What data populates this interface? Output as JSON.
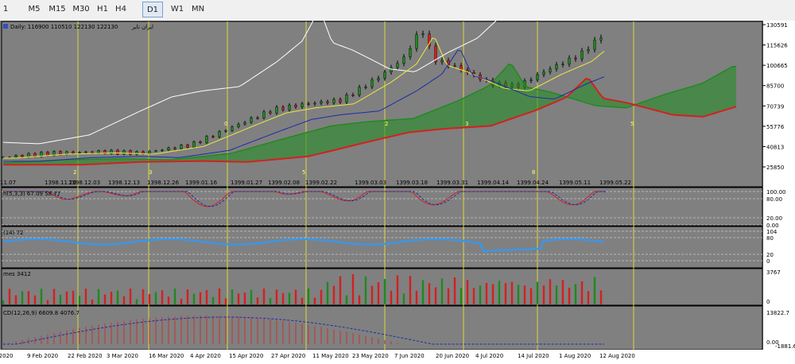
{
  "toolbar": {
    "timeframes": [
      {
        "label": "1",
        "active": false
      },
      {
        "label": "M5",
        "active": false
      },
      {
        "label": "M15",
        "active": false
      },
      {
        "label": "M30",
        "active": false
      },
      {
        "label": "H1",
        "active": false
      },
      {
        "label": "H4",
        "active": false
      },
      {
        "label": "D1",
        "active": true
      },
      {
        "label": "W1",
        "active": false
      },
      {
        "label": "MN",
        "active": false
      }
    ]
  },
  "chart_header": {
    "symbol_rtl": "ایران تایر",
    "text": "ایران تایر Daily:  116900  110510  122130  122130",
    "ltr_text": "Daily:  116900  110510  122130  122130",
    "rtl_text": "ایران تایر"
  },
  "price_axis": [
    "130591",
    "115626",
    "100665",
    "85700",
    "70739",
    "55776",
    "40813",
    "25850"
  ],
  "persian_dates": [
    "1398.11.07",
    "1398.11.20",
    "1398.12.03",
    "1398.12.13",
    "1398.12.26",
    "1399.01.16",
    "1399.01.27",
    "1399.02.08",
    "1399.02.22",
    "1399.03.03",
    "1399.03.18",
    "1399.03.31",
    "1399.04.14",
    "1399.04.24",
    "1399.05.11",
    "1399.05.22"
  ],
  "wave_labels": [
    "2",
    "3",
    "0",
    "5",
    "2",
    "3",
    "8",
    "5"
  ],
  "stoch": {
    "label": "h(5,3,3) 67.09 58.77",
    "axis": [
      "100.00",
      "80.00",
      "20.00",
      "0.00"
    ]
  },
  "rsi": {
    "label": "(14) 72",
    "axis": [
      "104",
      "80",
      "20",
      "0"
    ]
  },
  "volume": {
    "label": "mes 3412",
    "axis": [
      "3767",
      "0"
    ]
  },
  "macd": {
    "label": "CD(12,26,9) 6609.8 4076.7",
    "axis": [
      "13822.7",
      "0.00",
      "-1881.6"
    ]
  },
  "gregorian_dates": [
    "n 2020",
    "9 Feb 2020",
    "22 Feb 2020",
    "3 Mar 2020",
    "16 Mar 2020",
    "4 Apr 2020",
    "15 Apr 2020",
    "27 Apr 2020",
    "11 May 2020",
    "23 May 2020",
    "7 Jun 2020",
    "20 Jun 2020",
    "4 Jul 2020",
    "14 Jul 2020",
    "1 Aug 2020",
    "12 Aug 2020"
  ],
  "colors": {
    "background": "#808080",
    "grid_yellow": "#d8d83a",
    "bull": "#1e8a1e",
    "bear": "#d42020",
    "ma_white": "#ffffff",
    "ma_yellow": "#e8e840",
    "ma_blue": "#1c2ca8",
    "rsi_blue": "#3c96e6"
  }
}
